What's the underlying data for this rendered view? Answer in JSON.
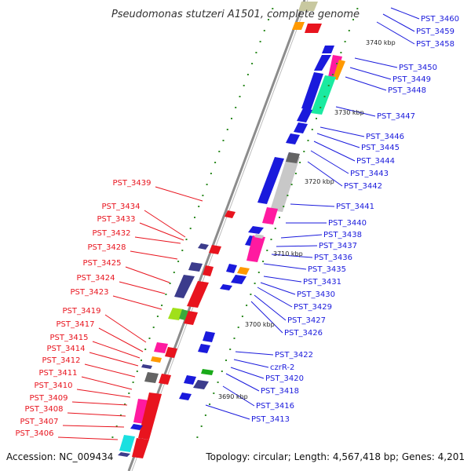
{
  "title": "Pseudomonas stutzeri A1501, complete genome",
  "accession": "Accession: NC_009434",
  "topology": "Topology: circular; Length: 4,567,418 bp; Genes: 4,201",
  "colors": {
    "plus": "#1a1adc",
    "minus": "#e8141e",
    "backbone": "#8c8c8c",
    "tick": "#2e8b22"
  },
  "kbp_labels": [
    "3740 kbp",
    "3730 kbp",
    "3720 kbp",
    "3710 kbp",
    "3700 kbp",
    "3690 kbp"
  ],
  "right_genes": [
    "PST_3460",
    "PST_3459",
    "PST_3458",
    "PST_3450",
    "PST_3449",
    "PST_3448",
    "PST_3447",
    "PST_3446",
    "PST_3445",
    "PST_3444",
    "PST_3443",
    "PST_3442",
    "PST_3441",
    "PST_3440",
    "PST_3438",
    "PST_3437",
    "PST_3436",
    "PST_3435",
    "PST_3431",
    "PST_3430",
    "PST_3429",
    "PST_3427",
    "PST_3426",
    "PST_3422",
    "czrR-2",
    "PST_3420",
    "PST_3418",
    "PST_3416",
    "PST_3413"
  ],
  "left_genes": [
    "PST_3439",
    "PST_3434",
    "PST_3433",
    "PST_3432",
    "PST_3428",
    "PST_3425",
    "PST_3424",
    "PST_3423",
    "PST_3419",
    "PST_3417",
    "PST_3415",
    "PST_3414",
    "PST_3412",
    "PST_3411",
    "PST_3410",
    "PST_3409",
    "PST_3408",
    "PST_3407",
    "PST_3406"
  ]
}
